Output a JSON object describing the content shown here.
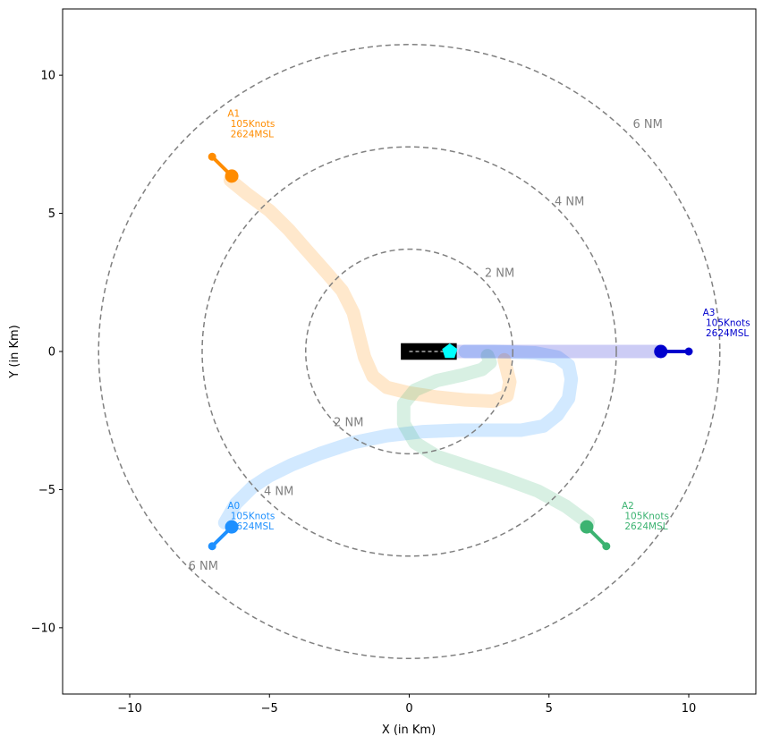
{
  "chart_data": {
    "type": "line",
    "title": "",
    "xlabel": "X (in Km)",
    "ylabel": "Y (in Km)",
    "xlim": [
      -12.4,
      12.4
    ],
    "ylim": [
      -12.4,
      12.4
    ],
    "xticks": [
      -10,
      -5,
      0,
      5,
      10
    ],
    "yticks": [
      -10,
      -5,
      0,
      5,
      10
    ],
    "xtick_labels": [
      "−10",
      "−5",
      "0",
      "5",
      "10"
    ],
    "ytick_labels": [
      "−10",
      "−5",
      "0",
      "5",
      "10"
    ],
    "grid": false,
    "range_rings": [
      {
        "radius_km": 3.704,
        "label": "2 NM",
        "labels_at": [
          [
            2.7,
            2.7
          ],
          [
            -2.7,
            -2.7
          ]
        ]
      },
      {
        "radius_km": 7.408,
        "label": "4 NM",
        "labels_at": [
          [
            5.2,
            5.3
          ],
          [
            -5.2,
            -5.2
          ]
        ]
      },
      {
        "radius_km": 11.112,
        "label": "6 NM",
        "labels_at": [
          [
            8.0,
            8.1
          ],
          [
            -7.9,
            -7.9
          ]
        ]
      }
    ],
    "ring_color": "#808080",
    "runway": {
      "x": [
        -0.3,
        1.7
      ],
      "y": [
        -0.3,
        0.3
      ],
      "color": "#000000"
    },
    "centerline": {
      "x": [
        0.0,
        1.45
      ],
      "y": [
        0,
        0
      ]
    },
    "airport_marker": {
      "x": 1.45,
      "y": 0.0,
      "color": "#00ffff",
      "shape": "pentagon"
    },
    "aircraft": [
      {
        "id": "A0",
        "label_lines": [
          "A0",
          " 105Knots",
          " 2624MSL"
        ],
        "color": "#1e90ff",
        "label_pos": [
          -6.5,
          -5.7
        ],
        "heading_line": {
          "x": [
            -6.35,
            -7.05
          ],
          "y": [
            -6.35,
            -7.05
          ]
        },
        "marker": {
          "x": -6.35,
          "y": -6.35
        },
        "trajectory": {
          "x": [
            -6.6,
            -6.2,
            -5.6,
            -5.0,
            -4.2,
            -3.2,
            -2.0,
            -0.8,
            0.5,
            1.8,
            3.0,
            4.0,
            4.8,
            5.3,
            5.7,
            5.8,
            5.7,
            5.3,
            4.5,
            3.0,
            2.0
          ],
          "y": [
            -6.2,
            -5.5,
            -4.9,
            -4.5,
            -4.1,
            -3.7,
            -3.3,
            -3.05,
            -2.9,
            -2.85,
            -2.85,
            -2.85,
            -2.7,
            -2.3,
            -1.7,
            -1.0,
            -0.5,
            -0.2,
            -0.05,
            0.0,
            0.0
          ]
        }
      },
      {
        "id": "A1",
        "label_lines": [
          "A1",
          " 105Knots",
          " 2624MSL"
        ],
        "color": "#ff8c00",
        "label_pos": [
          -6.5,
          8.5
        ],
        "heading_line": {
          "x": [
            -6.35,
            -7.05
          ],
          "y": [
            6.35,
            7.05
          ]
        },
        "marker": {
          "x": -6.35,
          "y": 6.35
        },
        "trajectory": {
          "x": [
            -6.4,
            -5.8,
            -5.0,
            -4.3,
            -3.7,
            -3.0,
            -2.4,
            -2.0,
            -1.8,
            -1.6,
            -1.3,
            -0.8,
            0.0,
            1.0,
            2.0,
            3.0,
            3.5,
            3.6,
            3.4
          ],
          "y": [
            6.2,
            5.7,
            5.1,
            4.4,
            3.7,
            2.9,
            2.2,
            1.4,
            0.6,
            -0.2,
            -0.9,
            -1.3,
            -1.5,
            -1.65,
            -1.75,
            -1.8,
            -1.6,
            -1.1,
            -0.3
          ]
        }
      },
      {
        "id": "A2",
        "label_lines": [
          "A2",
          " 105Knots",
          " 2624MSL"
        ],
        "color": "#3cb371",
        "label_pos": [
          7.6,
          -5.7
        ],
        "heading_line": {
          "x": [
            6.35,
            7.05
          ],
          "y": [
            -6.35,
            -7.05
          ]
        },
        "marker": {
          "x": 6.35,
          "y": -6.35
        },
        "trajectory": {
          "x": [
            6.4,
            5.6,
            4.6,
            3.4,
            2.2,
            1.0,
            0.2,
            -0.2,
            -0.2,
            0.2,
            1.0,
            1.9,
            2.6,
            2.9,
            2.8
          ],
          "y": [
            -6.2,
            -5.6,
            -5.05,
            -4.6,
            -4.2,
            -3.8,
            -3.3,
            -2.6,
            -1.9,
            -1.4,
            -1.05,
            -0.85,
            -0.65,
            -0.4,
            -0.15
          ]
        }
      },
      {
        "id": "A3",
        "label_lines": [
          "A3",
          " 105Knots",
          " 2624MSL"
        ],
        "color": "#0000cd",
        "label_pos": [
          10.5,
          1.3
        ],
        "heading_line": {
          "x": [
            9.0,
            10.0
          ],
          "y": [
            0.0,
            0.0
          ]
        },
        "marker": {
          "x": 9.0,
          "y": 0.0
        },
        "trajectory": {
          "x": [
            8.9,
            7.0,
            5.0,
            3.0,
            1.5
          ],
          "y": [
            0.0,
            0.0,
            0.0,
            0.0,
            0.0
          ]
        }
      }
    ]
  }
}
